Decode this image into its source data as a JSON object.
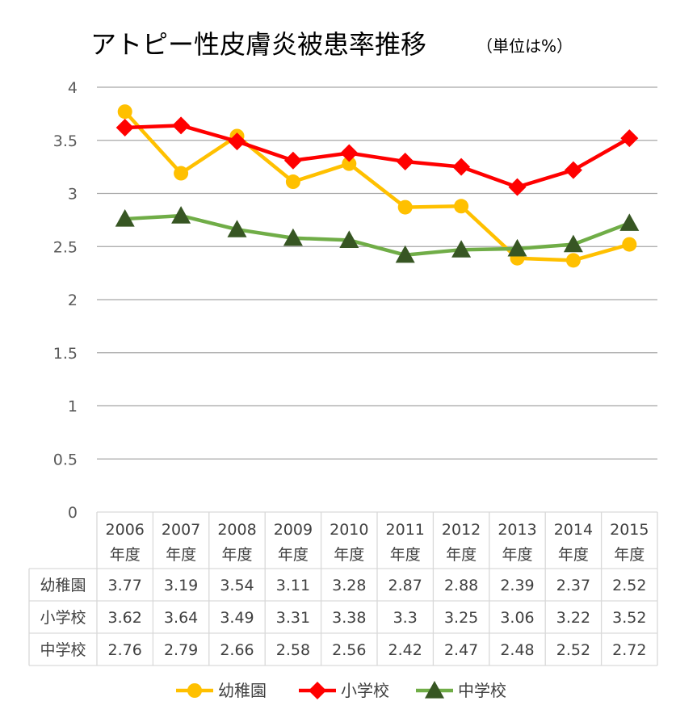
{
  "chart_data": {
    "type": "line",
    "title": "アトピー性皮膚炎被患率推移",
    "unit_note": "（単位は%）",
    "ylim": [
      0,
      4
    ],
    "yticks": [
      "0",
      "0.5",
      "1",
      "1.5",
      "2",
      "2.5",
      "3",
      "3.5",
      "4"
    ],
    "grid": true,
    "legend_position": "bottom",
    "categories": [
      {
        "year": "2006",
        "suffix": "年度"
      },
      {
        "year": "2007",
        "suffix": "年度"
      },
      {
        "year": "2008",
        "suffix": "年度"
      },
      {
        "year": "2009",
        "suffix": "年度"
      },
      {
        "year": "2010",
        "suffix": "年度"
      },
      {
        "year": "2011",
        "suffix": "年度"
      },
      {
        "year": "2012",
        "suffix": "年度"
      },
      {
        "year": "2013",
        "suffix": "年度"
      },
      {
        "year": "2014",
        "suffix": "年度"
      },
      {
        "year": "2015",
        "suffix": "年度"
      }
    ],
    "series": [
      {
        "name": "幼稚園",
        "color": "#FFC000",
        "marker": "circle",
        "values": [
          3.77,
          3.19,
          3.54,
          3.11,
          3.28,
          2.87,
          2.88,
          2.39,
          2.37,
          2.52
        ],
        "labels": [
          "3.77",
          "3.19",
          "3.54",
          "3.11",
          "3.28",
          "2.87",
          "2.88",
          "2.39",
          "2.37",
          "2.52"
        ]
      },
      {
        "name": "小学校",
        "color": "#FF0000",
        "marker": "diamond",
        "values": [
          3.62,
          3.64,
          3.49,
          3.31,
          3.38,
          3.3,
          3.25,
          3.06,
          3.22,
          3.52
        ],
        "labels": [
          "3.62",
          "3.64",
          "3.49",
          "3.31",
          "3.38",
          "3.3",
          "3.25",
          "3.06",
          "3.22",
          "3.52"
        ]
      },
      {
        "name": "中学校",
        "color": "#70AD47",
        "marker": "triangle",
        "marker_color": "#375623",
        "values": [
          2.76,
          2.79,
          2.66,
          2.58,
          2.56,
          2.42,
          2.47,
          2.48,
          2.52,
          2.72
        ],
        "labels": [
          "2.76",
          "2.79",
          "2.66",
          "2.58",
          "2.56",
          "2.42",
          "2.47",
          "2.48",
          "2.52",
          "2.72"
        ]
      }
    ]
  }
}
